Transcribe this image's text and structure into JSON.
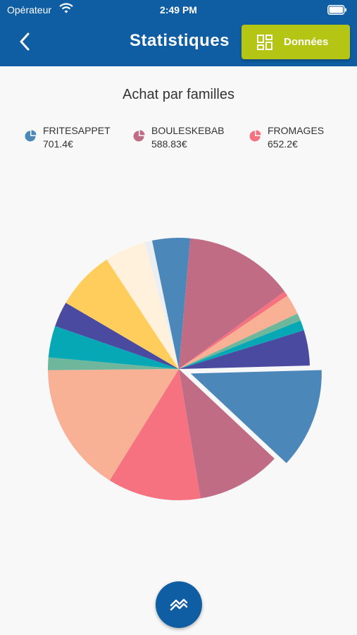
{
  "status_bar": {
    "carrier": "Opérateur",
    "time": "2:49 PM"
  },
  "header": {
    "title": "Statistiques",
    "data_button_label": "Données"
  },
  "colors": {
    "header": "#0f5da3",
    "accent": "#b5c514",
    "blue": "#4c87b9",
    "mauve": "#c06c84",
    "pink": "#f67280",
    "salmon": "#f8b195",
    "teal_light": "#6fb79c",
    "teal": "#06a8b6",
    "indigo": "#4a4aa0",
    "yellow": "#ffcd5c",
    "cream": "#fff1db",
    "grey": "#eceff1"
  },
  "legend": [
    {
      "name": "FRITESAPPET",
      "value": "701.4€",
      "color": "#4c87b9"
    },
    {
      "name": "BOULESKEBAB",
      "value": "588.83€",
      "color": "#c06c84"
    },
    {
      "name": "FROMAGES",
      "value": "652.2€",
      "color": "#f67280"
    }
  ],
  "chart_data": {
    "type": "pie",
    "title": "Achat par familles",
    "unit": "€",
    "exploded_slice": 0,
    "slices": [
      {
        "value": 701.4,
        "color": "#4c87b9"
      },
      {
        "value": 588.83,
        "color": "#c06c84"
      },
      {
        "value": 652.2,
        "color": "#f67280"
      },
      {
        "value": 906.6,
        "color": "#f8b195"
      },
      {
        "value": 88.1,
        "color": "#6fb79c"
      },
      {
        "value": 220.2,
        "color": "#06a8b6"
      },
      {
        "value": 176.2,
        "color": "#4a4aa0"
      },
      {
        "value": 413.6,
        "color": "#ffcd5c"
      },
      {
        "value": 287.7,
        "color": "#fff1db"
      },
      {
        "value": 52.9,
        "color": "#eceff1"
      },
      {
        "value": 264.3,
        "color": "#4c87b9"
      },
      {
        "value": 767.9,
        "color": "#c06c84"
      },
      {
        "value": 35.2,
        "color": "#f67280"
      },
      {
        "value": 141.0,
        "color": "#f8b195"
      },
      {
        "value": 52.9,
        "color": "#6fb79c"
      },
      {
        "value": 70.5,
        "color": "#06a8b6"
      },
      {
        "value": 246.7,
        "color": "#4a4aa0"
      }
    ]
  }
}
